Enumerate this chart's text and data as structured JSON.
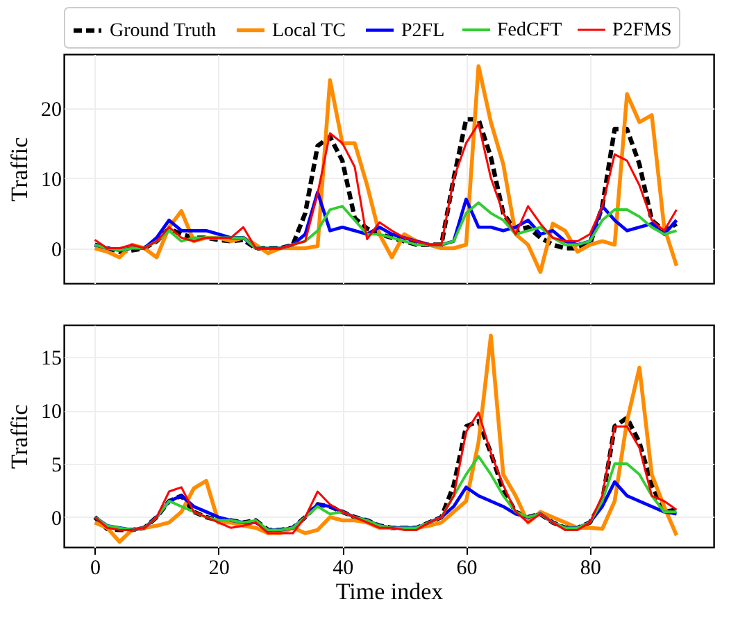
{
  "chart_data": [
    {
      "type": "line",
      "ylabel": "Traffic",
      "xlim": [
        -5,
        100
      ],
      "xticks": [
        0,
        20,
        40,
        60,
        80
      ],
      "ylim": [
        -5,
        27.7
      ],
      "yticks": [
        0,
        10,
        20
      ],
      "grid": true,
      "legend": "top",
      "tick_labels": "y",
      "x": [
        0,
        2,
        4,
        6,
        8,
        10,
        12,
        14,
        16,
        18,
        20,
        22,
        24,
        26,
        28,
        30,
        32,
        34,
        36,
        38,
        40,
        42,
        44,
        46,
        48,
        50,
        52,
        54,
        56,
        58,
        60,
        62,
        64,
        66,
        68,
        70,
        72,
        74,
        76,
        78,
        80,
        82,
        84,
        86,
        88,
        90,
        92,
        94
      ],
      "series": [
        {
          "name": "Ground Truth",
          "color": "#000000",
          "line_style": "dashed",
          "values": [
            0.5,
            0,
            -0.5,
            -0.3,
            0,
            1,
            2.8,
            2,
            1.5,
            1.5,
            1.2,
            1,
            1.2,
            0,
            0,
            0,
            0.5,
            5,
            14.6,
            15.9,
            12.5,
            4.3,
            2.8,
            2,
            1.5,
            1,
            0.5,
            0.5,
            0.5,
            10,
            18.4,
            18.4,
            13,
            5,
            2.5,
            3,
            1.5,
            0.5,
            0,
            0,
            0.5,
            6,
            17,
            17,
            12,
            4,
            2.5,
            3.5
          ]
        },
        {
          "name": "Local TC",
          "color": "#ff8c00",
          "line_style": "solid",
          "values": [
            0,
            -0.5,
            -1.3,
            0.5,
            0,
            -1.3,
            3,
            5.3,
            1,
            1.5,
            1.5,
            1,
            1.5,
            0.5,
            -0.7,
            0,
            0,
            0,
            0.3,
            24,
            15,
            15,
            9,
            2,
            -1.3,
            2,
            1,
            0.5,
            0,
            0,
            0.5,
            26,
            18,
            12,
            2,
            0.5,
            -3.4,
            3.5,
            2.5,
            -0.5,
            0.5,
            1,
            0.5,
            22,
            18,
            19,
            3,
            -2.5
          ]
        },
        {
          "name": "P2FL",
          "color": "#0000ff",
          "line_style": "solid",
          "values": [
            0.5,
            0,
            -0.3,
            0,
            0,
            1.5,
            4,
            2.5,
            2.5,
            2.5,
            2,
            1.5,
            1.5,
            0,
            0,
            0,
            0.5,
            2,
            8,
            2.5,
            3,
            2.5,
            2,
            3,
            2,
            1.5,
            1,
            0.5,
            0.5,
            1,
            7,
            3,
            3,
            2.5,
            3,
            4,
            2,
            2.5,
            1,
            0.5,
            1,
            6,
            4,
            2.5,
            3,
            3.5,
            2,
            4
          ]
        },
        {
          "name": "FedCFT",
          "color": "#32cd32",
          "line_style": "solid",
          "values": [
            0.5,
            0,
            -0.3,
            0,
            0,
            1,
            2.5,
            1,
            1.5,
            1.5,
            1.5,
            1.5,
            1.5,
            0,
            0,
            0,
            0.5,
            1,
            2.5,
            5.5,
            6,
            4,
            2,
            2,
            1.5,
            1,
            0.5,
            0.5,
            0.5,
            1,
            5,
            6.5,
            5,
            4,
            2,
            2.5,
            3,
            1.5,
            0.5,
            0.5,
            1,
            4,
            5.5,
            5.5,
            4.5,
            3,
            2,
            2.5
          ]
        },
        {
          "name": "P2FMS",
          "color": "#ff0000",
          "line_style": "solid",
          "values": [
            1.2,
            0,
            0,
            0.5,
            0,
            1,
            3,
            1.5,
            1,
            1.5,
            1.5,
            1.5,
            3,
            0,
            0,
            0,
            0.5,
            1,
            7.8,
            16.4,
            15,
            11.6,
            1.3,
            3.7,
            2.5,
            1.5,
            1,
            0.5,
            0.5,
            10,
            15,
            17.8,
            10,
            5,
            2,
            6,
            3.5,
            1.5,
            1,
            1,
            2,
            6,
            13.4,
            12.5,
            9,
            4,
            2.5,
            5.5
          ]
        }
      ]
    },
    {
      "type": "line",
      "xlabel": "Time index",
      "ylabel": "Traffic",
      "xlim": [
        -5,
        100
      ],
      "xticks": [
        0,
        20,
        40,
        60,
        80
      ],
      "ylim": [
        -2.8,
        18
      ],
      "yticks": [
        0,
        5,
        10,
        15
      ],
      "grid": true,
      "x": [
        0,
        2,
        4,
        6,
        8,
        10,
        12,
        14,
        16,
        18,
        20,
        22,
        24,
        26,
        28,
        30,
        32,
        34,
        36,
        38,
        40,
        42,
        44,
        46,
        48,
        50,
        52,
        54,
        56,
        58,
        60,
        62,
        64,
        66,
        68,
        70,
        72,
        74,
        76,
        78,
        80,
        82,
        84,
        86,
        88,
        90,
        92,
        94
      ],
      "series": [
        {
          "name": "Ground Truth",
          "color": "#000000",
          "line_style": "dashed",
          "values": [
            0,
            -1.1,
            -1.2,
            -1.2,
            -1,
            0,
            1.5,
            2,
            0.5,
            0,
            -0.3,
            -0.3,
            -0.5,
            -0.3,
            -1.2,
            -1.2,
            -1,
            0,
            1.2,
            1,
            0.5,
            0,
            -0.3,
            -0.8,
            -1,
            -1,
            -1,
            -0.5,
            0,
            3,
            8.5,
            9,
            6,
            2.5,
            0.5,
            0,
            0.3,
            -0.5,
            -1,
            -1,
            -0.5,
            1.5,
            8.5,
            9.3,
            7,
            3,
            0.5,
            0.7
          ]
        },
        {
          "name": "Local TC",
          "color": "#ff8c00",
          "line_style": "solid",
          "values": [
            -0.5,
            -1,
            -2.3,
            -1.2,
            -1,
            -0.8,
            -0.5,
            0.5,
            2.7,
            3.4,
            -0.5,
            -0.5,
            -0.8,
            -1,
            -1.5,
            -1.5,
            -1,
            -1.5,
            -1.2,
            0,
            -0.3,
            -0.3,
            -0.5,
            -1,
            -1,
            -1,
            -1,
            -0.8,
            -0.5,
            0.5,
            1.5,
            7,
            17,
            4,
            2,
            -0.5,
            0.5,
            0,
            -0.5,
            -1,
            -1,
            -1.1,
            1.5,
            9,
            14,
            4,
            1,
            -1.7
          ]
        },
        {
          "name": "P2FL",
          "color": "#0000ff",
          "line_style": "solid",
          "values": [
            0,
            -0.8,
            -1,
            -1.2,
            -1,
            0,
            1.5,
            2,
            1,
            0.5,
            0,
            -0.3,
            -0.5,
            -0.5,
            -1.2,
            -1.2,
            -1,
            0,
            1.2,
            1,
            0.5,
            0,
            -0.3,
            -0.8,
            -1,
            -1,
            -1,
            -0.5,
            0,
            1,
            2.8,
            2,
            1.5,
            1,
            0.3,
            0,
            0.3,
            -0.5,
            -1,
            -1,
            -0.5,
            1,
            3.3,
            2,
            1.5,
            1,
            0.5,
            0.3
          ]
        },
        {
          "name": "FedCFT",
          "color": "#32cd32",
          "line_style": "solid",
          "values": [
            0,
            -0.8,
            -1,
            -1.2,
            -1,
            0,
            1.5,
            1,
            0.5,
            0,
            -0.3,
            -0.3,
            -0.5,
            -0.3,
            -1.2,
            -1.2,
            -1,
            0,
            1,
            0.3,
            0.5,
            0,
            -0.3,
            -0.8,
            -1,
            -1,
            -1,
            -0.5,
            0,
            2,
            4,
            5.7,
            4,
            2,
            0.5,
            0,
            0.3,
            -0.5,
            -1,
            -1,
            -0.5,
            1.5,
            5,
            5,
            4,
            2,
            0.5,
            0.5
          ]
        },
        {
          "name": "P2FMS",
          "color": "#ff0000",
          "line_style": "solid",
          "values": [
            0,
            -1,
            -1.2,
            -1.2,
            -1,
            0,
            2.4,
            2.8,
            0.5,
            0,
            -0.5,
            -1,
            -0.8,
            -0.5,
            -1.5,
            -1.5,
            -1.5,
            0,
            2.4,
            1.2,
            0.5,
            0,
            -0.5,
            -1,
            -1,
            -1.2,
            -1.2,
            -0.5,
            0,
            2,
            8,
            9.8,
            6,
            3,
            0.5,
            -0.5,
            0.3,
            -0.5,
            -1.2,
            -1.2,
            -0.5,
            2,
            8.5,
            8.5,
            6.5,
            2,
            1.5,
            0.7
          ]
        }
      ]
    }
  ]
}
